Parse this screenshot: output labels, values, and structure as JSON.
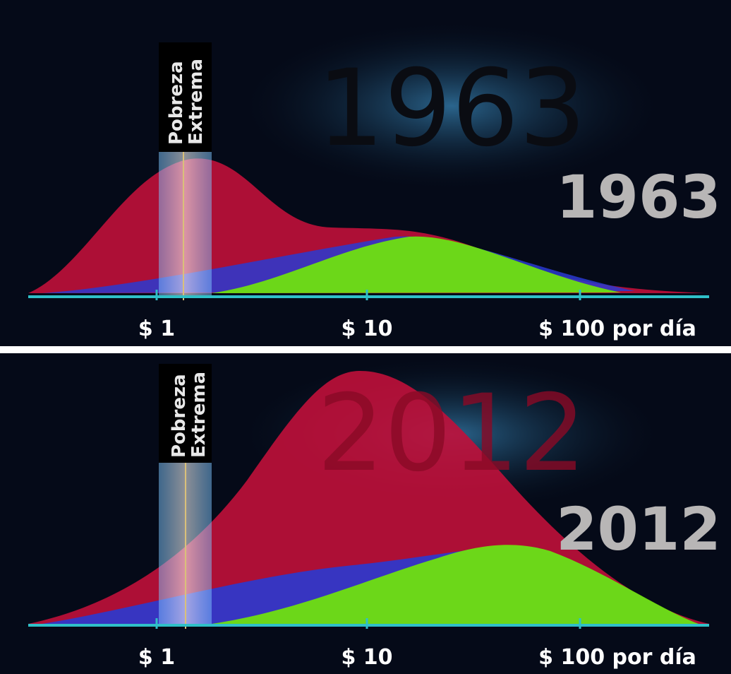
{
  "panels": [
    {
      "background_year": "1963",
      "year": "1963",
      "poverty_label": [
        "Pobreza",
        "Extrema"
      ],
      "axis_labels": [
        "$ 1",
        "$ 10",
        "$ 100 por día"
      ]
    },
    {
      "background_year": "2012",
      "year": "2012",
      "poverty_label": [
        "Pobreza",
        "Extrema"
      ],
      "axis_labels": [
        "$ 1",
        "$ 10",
        "$ 100 por día"
      ]
    }
  ]
}
